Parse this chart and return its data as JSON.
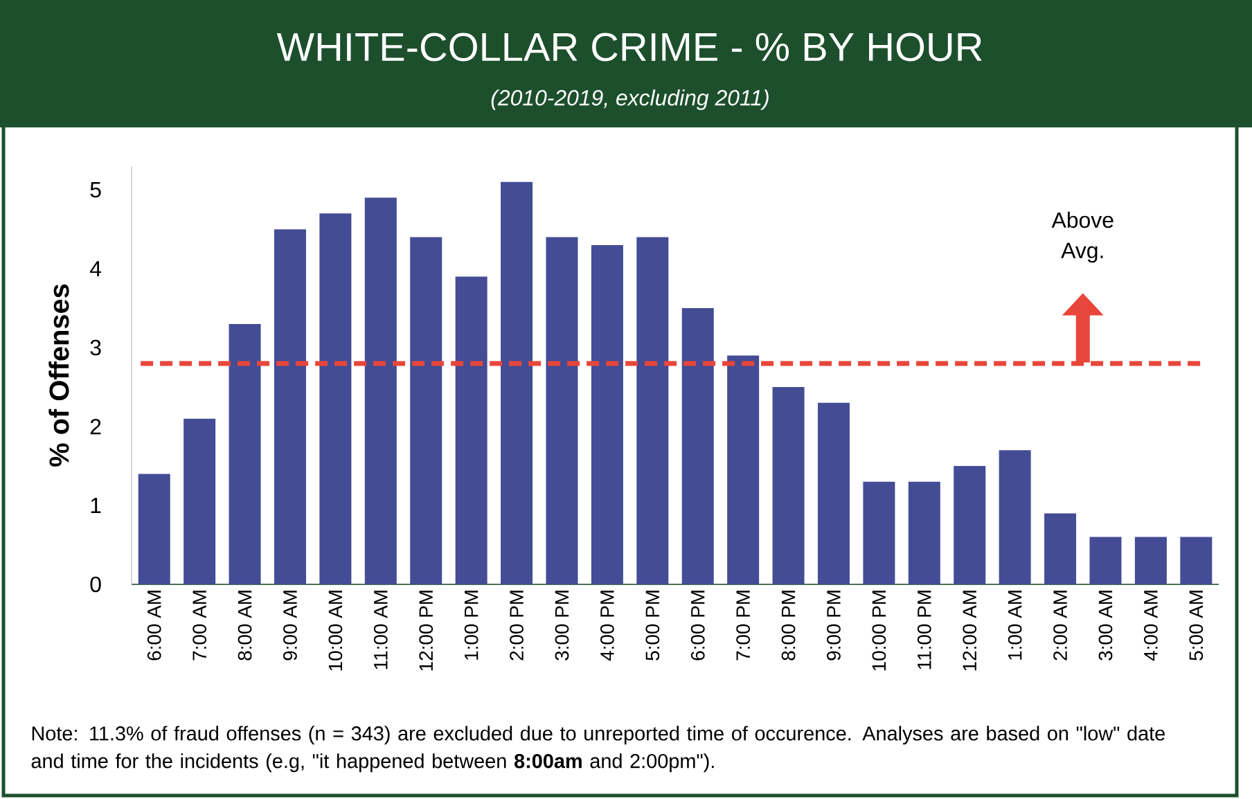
{
  "chart_data": {
    "type": "bar",
    "title": "WHITE-COLLAR CRIME - % BY HOUR",
    "subtitle": "(2010-2019, excluding 2011)",
    "ylabel": "% of Offenses",
    "categories": [
      "6:00 AM",
      "7:00 AM",
      "8:00 AM",
      "9:00 AM",
      "10:00 AM",
      "11:00 AM",
      "12:00 PM",
      "1:00 PM",
      "2:00 PM",
      "3:00 PM",
      "4:00 PM",
      "5:00 PM",
      "6:00 PM",
      "7:00 PM",
      "8:00 PM",
      "9:00 PM",
      "10:00 PM",
      "11:00 PM",
      "12:00 AM",
      "1:00 AM",
      "2:00 AM",
      "3:00 AM",
      "4:00 AM",
      "5:00 AM"
    ],
    "values": [
      1.4,
      2.1,
      3.3,
      4.5,
      4.7,
      4.9,
      4.4,
      3.9,
      5.1,
      4.4,
      4.3,
      4.4,
      3.5,
      2.9,
      2.5,
      2.3,
      1.3,
      1.3,
      1.5,
      1.7,
      0.9,
      0.6,
      0.6,
      0.6
    ],
    "color": "#444c95",
    "ylim": [
      0,
      5.3
    ],
    "yticks": [
      0,
      1,
      2,
      3,
      4,
      5
    ],
    "ref_lines": [
      {
        "axis": "y",
        "value": 2.8,
        "color": "#e8463a",
        "line_style": "dashed"
      }
    ],
    "annotations": [
      "Above Avg.",
      "Note: 11.3% of fraud offenses (n = 343) are excluded due to unreported time of occurence. Analyses are based on \"low\" date and time for the incidents (e.g, \"it happened between **8:00am** and 2:00pm\")."
    ]
  }
}
